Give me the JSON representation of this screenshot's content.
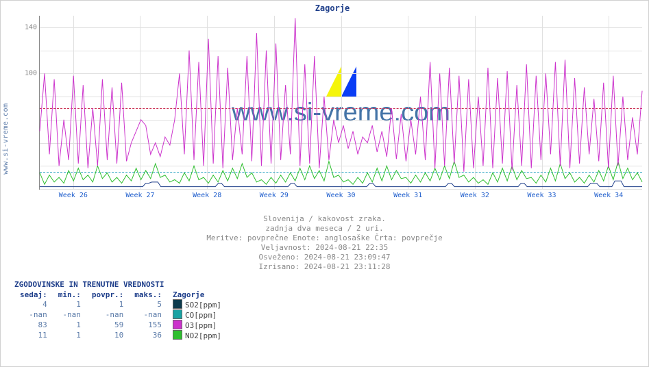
{
  "left_url": "www.si-vreme.com",
  "chart": {
    "title": "Zagorje",
    "watermark_text": "www.si-vreme.com",
    "ylim": [
      0,
      150
    ],
    "y_ticks": [
      0,
      20,
      40,
      60,
      80,
      100,
      120,
      140
    ],
    "y_tick_labels": [
      "",
      "",
      "",
      "",
      "",
      "100",
      "",
      "140"
    ],
    "x_cats": [
      "Week 26",
      "Week 27",
      "Week 28",
      "Week 29",
      "Week 30",
      "Week 31",
      "Week 32",
      "Week 33",
      "Week 34"
    ],
    "grid_color": "#e0e0e0",
    "axis_color": "#888888",
    "background_color": "#ffffff",
    "dashed_red_y": 70,
    "dashed_cyan_y": 15,
    "dashed_red_color": "#cc3355",
    "dashed_cyan_color": "#2aa3c2",
    "series": {
      "magenta": {
        "color": "#cc33cc",
        "line_width": 1,
        "data": [
          50,
          100,
          30,
          95,
          20,
          60,
          25,
          98,
          22,
          90,
          18,
          70,
          20,
          95,
          25,
          88,
          22,
          92,
          24,
          40,
          50,
          60,
          55,
          30,
          40,
          28,
          45,
          38,
          60,
          100,
          30,
          120,
          25,
          110,
          20,
          130,
          22,
          115,
          18,
          105,
          25,
          70,
          30,
          115,
          24,
          135,
          20,
          120,
          22,
          126,
          25,
          90,
          30,
          148,
          20,
          108,
          22,
          115,
          18,
          80,
          25,
          60,
          40,
          55,
          35,
          50,
          30,
          45,
          40,
          55,
          32,
          50,
          28,
          70,
          26,
          65,
          24,
          60,
          30,
          80,
          25,
          110,
          18,
          100,
          20,
          105,
          22,
          98,
          15,
          95,
          18,
          80,
          20,
          105,
          18,
          96,
          22,
          102,
          16,
          90,
          20,
          108,
          18,
          98,
          25,
          100,
          30,
          110,
          20,
          112,
          18,
          96,
          22,
          88,
          30,
          78,
          24,
          92,
          18,
          98,
          20,
          80,
          25,
          62,
          30,
          85
        ]
      },
      "green": {
        "color": "#2fbf2f",
        "line_width": 1,
        "data": [
          14,
          4,
          12,
          6,
          10,
          5,
          16,
          7,
          18,
          8,
          12,
          6,
          20,
          9,
          14,
          6,
          10,
          5,
          12,
          7,
          18,
          8,
          16,
          9,
          22,
          10,
          12,
          6,
          8,
          5,
          14,
          7,
          20,
          8,
          10,
          5,
          12,
          6,
          16,
          7,
          18,
          9,
          22,
          10,
          14,
          6,
          8,
          4,
          10,
          5,
          12,
          6,
          14,
          7,
          18,
          8,
          20,
          9,
          16,
          7,
          24,
          10,
          12,
          6,
          8,
          4,
          10,
          5,
          14,
          6,
          18,
          7,
          20,
          8,
          16,
          9,
          10,
          5,
          12,
          6,
          14,
          7,
          18,
          8,
          20,
          9,
          24,
          10,
          12,
          6,
          10,
          5,
          8,
          4,
          14,
          6,
          18,
          7,
          20,
          8,
          16,
          9,
          10,
          5,
          12,
          6,
          18,
          7,
          22,
          9,
          14,
          6,
          10,
          5,
          12,
          6,
          16,
          7,
          20,
          8,
          24,
          9,
          18,
          8,
          14,
          6
        ]
      },
      "blue": {
        "color": "#1e3e8a",
        "line_width": 1,
        "baseline": 2,
        "spikes": [
          [
            0.18,
            3
          ],
          [
            0.19,
            4
          ],
          [
            0.3,
            3
          ],
          [
            0.42,
            3
          ],
          [
            0.55,
            3
          ],
          [
            0.68,
            3
          ],
          [
            0.8,
            3
          ],
          [
            0.92,
            3
          ],
          [
            0.96,
            5
          ]
        ]
      }
    }
  },
  "caption": {
    "lines": [
      "Slovenija / kakovost zraka.",
      "zadnja dva meseca / 2 uri.",
      "Meritve: povprečne  Enote: anglosaške  Črta: povprečje",
      "Veljavnost: 2024-08-21 22:35",
      "Osveženo: 2024-08-21 23:09:47",
      "Izrisano: 2024-08-21 23:11:28"
    ]
  },
  "table": {
    "title": "ZGODOVINSKE IN TRENUTNE VREDNOSTI",
    "columns": [
      "sedaj:",
      "min.:",
      "povpr.:",
      "maks.:"
    ],
    "legend_header": "Zagorje",
    "rows": [
      {
        "sedaj": "4",
        "min": "1",
        "povpr": "1",
        "maks": "5",
        "swatch": "#0d3b4d",
        "label": "SO2[ppm]"
      },
      {
        "sedaj": "-nan",
        "min": "-nan",
        "povpr": "-nan",
        "maks": "-nan",
        "swatch": "#1aa3a3",
        "label": "CO[ppm]"
      },
      {
        "sedaj": "83",
        "min": "1",
        "povpr": "59",
        "maks": "155",
        "swatch": "#cc33cc",
        "label": "O3[ppm]"
      },
      {
        "sedaj": "11",
        "min": "1",
        "povpr": "10",
        "maks": "36",
        "swatch": "#2fbf2f",
        "label": "NO2[ppm]"
      }
    ]
  },
  "watermark_logo": {
    "c1": "#f5f50a",
    "c2": "#0a3df5"
  }
}
